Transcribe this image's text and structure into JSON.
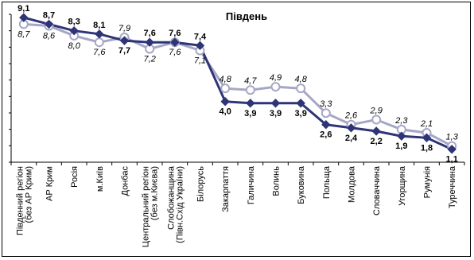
{
  "chart_data": {
    "type": "line",
    "title": "Південь",
    "categories": [
      "Південний регіон\n(без АР Крим)",
      "АР Крим",
      "Росія",
      "м.Київ",
      "Донбас",
      "Центральний регіон\n(без м.Києва)",
      "Слобожанщина\n(Півн.Схід України)",
      "Білорусь",
      "Закарпаття",
      "Галичина",
      "Волинь",
      "Буковина",
      "Польща",
      "Молдова",
      "Словаччина",
      "Угорщина",
      "Румунія",
      "Туреччина"
    ],
    "series": [
      {
        "values": [
          9.1,
          8.7,
          8.3,
          8.1,
          7.7,
          7.6,
          7.6,
          7.4,
          4.0,
          3.9,
          3.9,
          3.9,
          2.6,
          2.4,
          2.2,
          1.9,
          1.8,
          1.1
        ],
        "labels": [
          "9,1",
          "8,7",
          "8,3",
          "8,1",
          "7,7",
          "7,6",
          "7,6",
          "7,4",
          "4,0",
          "3,9",
          "3,9",
          "3,9",
          "2,6",
          "2,4",
          "2,2",
          "1,9",
          "1,8",
          "1,1"
        ],
        "color": "#2e3476",
        "marker": "diamond"
      },
      {
        "values": [
          8.7,
          8.6,
          8.0,
          7.6,
          7.9,
          7.2,
          7.6,
          7.1,
          4.8,
          4.7,
          4.9,
          4.8,
          3.3,
          2.6,
          2.9,
          2.3,
          2.1,
          1.3
        ],
        "labels": [
          "8,7",
          "8,6",
          "8,0",
          "7,6",
          "7,9",
          "7,2",
          "7,6",
          "7,1",
          "4,8",
          "4,7",
          "4,9",
          "4,8",
          "3,3",
          "2,6",
          "2,9",
          "2,3",
          "2,1",
          "1,3"
        ],
        "color": "#a6a7c6",
        "marker": "circle"
      }
    ],
    "ylim": [
      1,
      9
    ],
    "y_ticks": 9,
    "grid": false,
    "xlabel": "",
    "ylabel": ""
  }
}
